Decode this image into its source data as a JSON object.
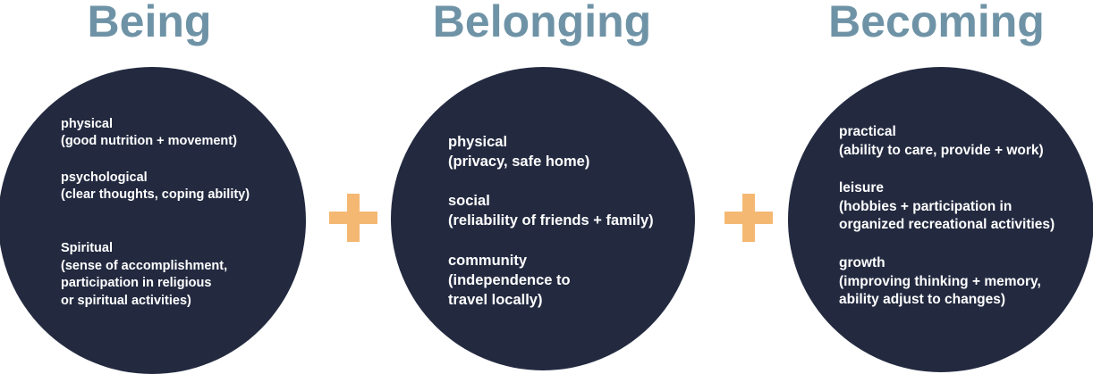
{
  "colors": {
    "heading": "#6f93a6",
    "circle": "#232a40",
    "plus": "#f5b872",
    "text": "#ffffff"
  },
  "columns": [
    {
      "title": "Being",
      "items": [
        {
          "lines": [
            "physical",
            "(good nutrition + movement)"
          ]
        },
        {
          "lines": [
            "psychological",
            "(clear thoughts, coping ability)"
          ]
        },
        {
          "lines": [
            "Spiritual",
            "(sense of accomplishment,",
            "participation in religious",
            "or spiritual activities)"
          ]
        }
      ]
    },
    {
      "title": "Belonging",
      "items": [
        {
          "lines": [
            "physical",
            "(privacy, safe home)"
          ]
        },
        {
          "lines": [
            "social",
            "(reliability of friends + family)"
          ]
        },
        {
          "lines": [
            "community",
            "(independence to",
            "travel locally)"
          ]
        }
      ]
    },
    {
      "title": "Becoming",
      "items": [
        {
          "lines": [
            "practical",
            "(ability to care, provide + work)"
          ]
        },
        {
          "lines": [
            "leisure",
            "(hobbies + participation in",
            "organized recreational activities)"
          ]
        },
        {
          "lines": [
            "growth",
            "(improving thinking + memory,",
            "ability adjust to changes)"
          ]
        }
      ]
    }
  ],
  "connector_icon": "plus-icon"
}
